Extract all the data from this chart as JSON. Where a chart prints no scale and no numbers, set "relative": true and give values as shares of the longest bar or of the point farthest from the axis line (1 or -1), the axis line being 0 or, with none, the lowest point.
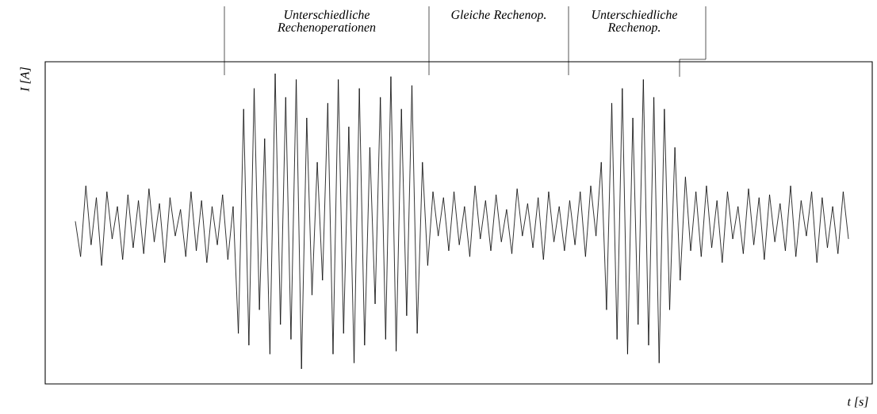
{
  "chart_data": {
    "type": "line",
    "relative": true,
    "xlabel": "t [s]",
    "ylabel": "I [A]",
    "color": "#000000",
    "annotations": [
      "Unterschiedliche Rechenoperationen",
      "Gleiche Rechenop.",
      "Unterschiedliche Rechenop."
    ],
    "categories": [
      null,
      null,
      null,
      null,
      null,
      null,
      null,
      null,
      null,
      null,
      null,
      null,
      null,
      null,
      null,
      null,
      null,
      null,
      null,
      null,
      null,
      null,
      null,
      null,
      null,
      null,
      null,
      null,
      null,
      null,
      null,
      null,
      null,
      null,
      null,
      null,
      null,
      null,
      null,
      null,
      null,
      null,
      null,
      null,
      null,
      null,
      null,
      null,
      null,
      null,
      null,
      null,
      null,
      null,
      null,
      null,
      null,
      null,
      null,
      null,
      null,
      null,
      null,
      null,
      null,
      null,
      null,
      null,
      null,
      null,
      null,
      null,
      null,
      null,
      null,
      null,
      null,
      null,
      null,
      null,
      null,
      null,
      null,
      null,
      null,
      null,
      null,
      null,
      null,
      null,
      null,
      null,
      null,
      null,
      null,
      null,
      null,
      null,
      null,
      null,
      null,
      null,
      null,
      null,
      null,
      null,
      null,
      null,
      null,
      null,
      null,
      null,
      null,
      null,
      null,
      null,
      null,
      null,
      null,
      null,
      null,
      null,
      null,
      null,
      null,
      null,
      null,
      null,
      null,
      null,
      null,
      null,
      null,
      null,
      null,
      null,
      null,
      null,
      null,
      null,
      null,
      null,
      null,
      null,
      null,
      null,
      null,
      null
    ],
    "values": [
      0.5,
      0.38,
      0.62,
      0.42,
      0.58,
      0.35,
      0.6,
      0.44,
      0.55,
      0.37,
      0.59,
      0.41,
      0.57,
      0.39,
      0.61,
      0.43,
      0.56,
      0.36,
      0.58,
      0.45,
      0.54,
      0.38,
      0.6,
      0.4,
      0.57,
      0.36,
      0.55,
      0.42,
      0.59,
      0.37,
      0.55,
      0.12,
      0.88,
      0.08,
      0.95,
      0.2,
      0.78,
      0.05,
      1.0,
      0.15,
      0.92,
      0.1,
      0.98,
      0.0,
      0.85,
      0.25,
      0.7,
      0.3,
      0.9,
      0.05,
      0.98,
      0.12,
      0.82,
      0.02,
      0.95,
      0.08,
      0.75,
      0.22,
      0.92,
      0.1,
      0.99,
      0.06,
      0.88,
      0.18,
      0.96,
      0.12,
      0.7,
      0.35,
      0.6,
      0.45,
      0.58,
      0.4,
      0.6,
      0.42,
      0.55,
      0.38,
      0.62,
      0.44,
      0.57,
      0.4,
      0.59,
      0.43,
      0.54,
      0.39,
      0.61,
      0.45,
      0.56,
      0.41,
      0.58,
      0.37,
      0.6,
      0.43,
      0.55,
      0.4,
      0.57,
      0.42,
      0.6,
      0.38,
      0.62,
      0.45,
      0.7,
      0.2,
      0.9,
      0.1,
      0.95,
      0.05,
      0.85,
      0.15,
      0.98,
      0.08,
      0.92,
      0.02,
      0.88,
      0.2,
      0.75,
      0.3,
      0.65,
      0.4,
      0.6,
      0.38,
      0.62,
      0.41,
      0.57,
      0.36,
      0.6,
      0.44,
      0.55,
      0.39,
      0.61,
      0.42,
      0.58,
      0.37,
      0.59,
      0.43,
      0.56,
      0.4,
      0.62,
      0.38,
      0.57,
      0.45,
      0.6,
      0.36,
      0.58,
      0.41,
      0.55,
      0.39,
      0.6,
      0.44
    ]
  }
}
